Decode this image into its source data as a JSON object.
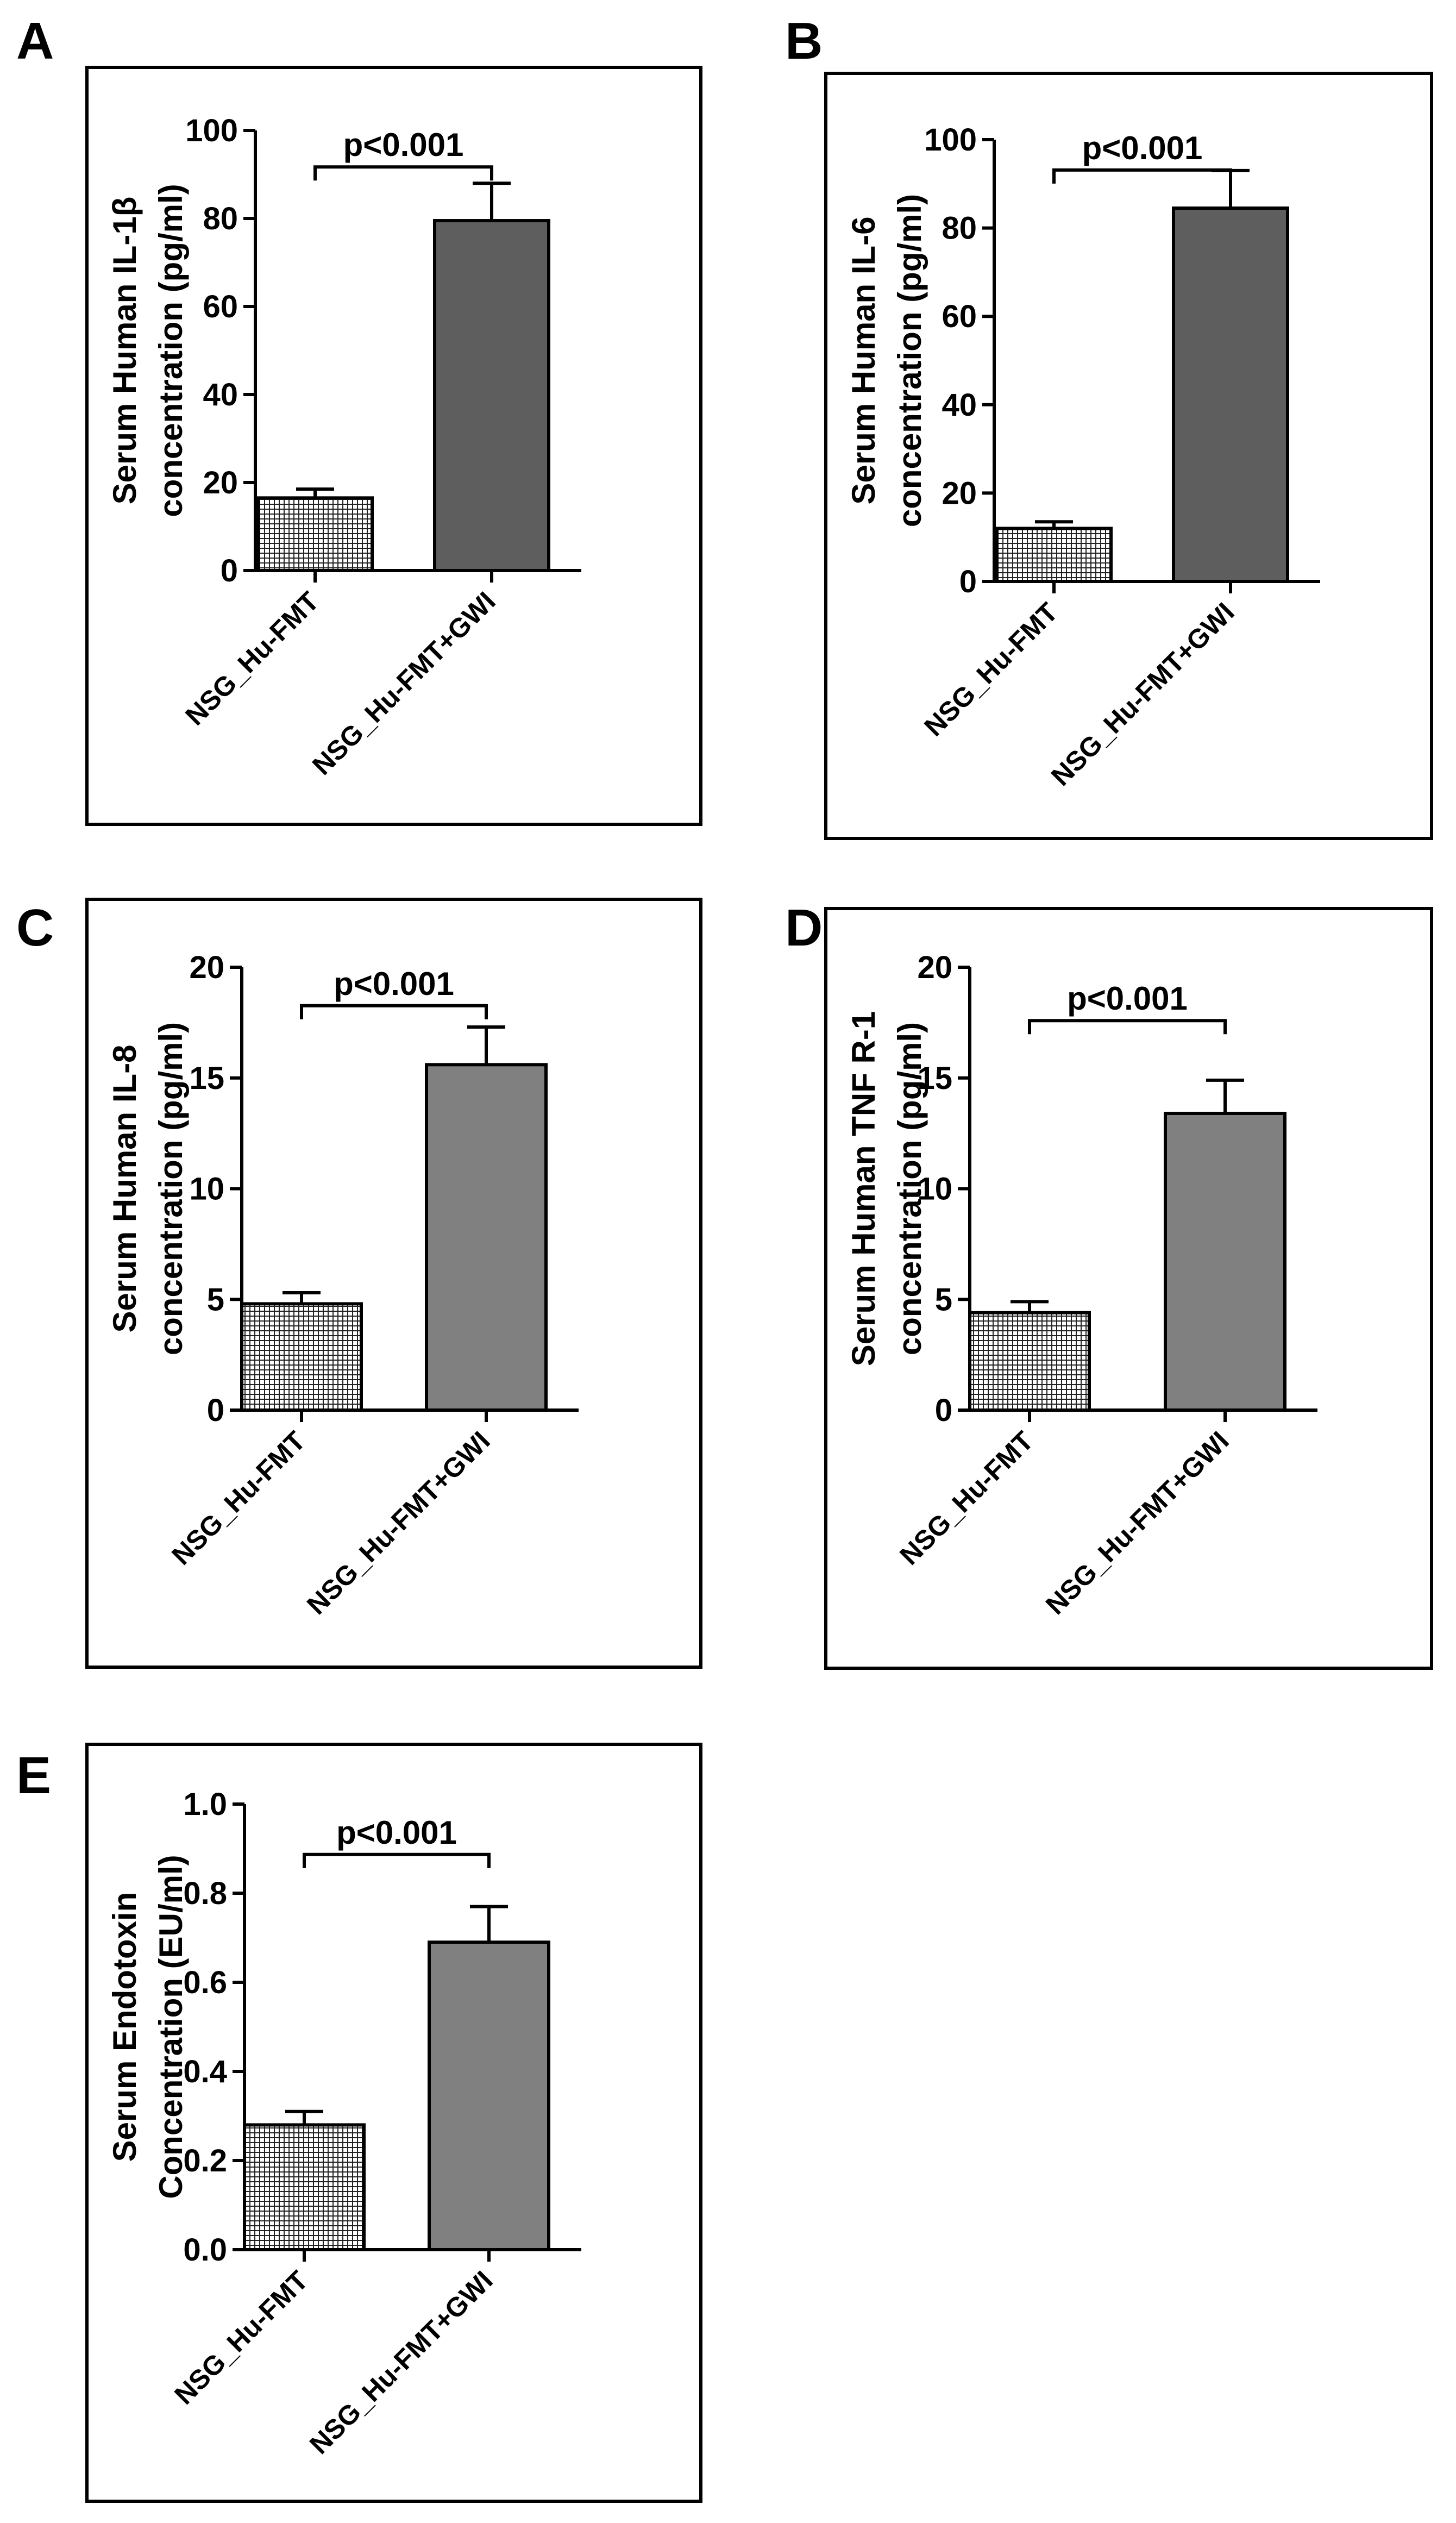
{
  "figure": {
    "panels": [
      {
        "letter": "A",
        "chart_data": {
          "type": "bar",
          "ylabel_line1": "Serum Human IL-1β",
          "ylabel_line2": "concentration (pg/ml)",
          "categories": [
            "NSG_Hu-FMT",
            "NSG_Hu-FMT+GWI"
          ],
          "values": [
            16.5,
            79.5
          ],
          "errors": [
            2,
            8.5
          ],
          "ylim": [
            0,
            100
          ],
          "yticks": [
            0,
            20,
            40,
            60,
            80,
            100
          ],
          "tick_labels": [
            "0",
            "20",
            "40",
            "60",
            "80",
            "100"
          ],
          "annotation": "p<0.001",
          "bar_fills": [
            "pattern",
            "#5e5e5e"
          ]
        }
      },
      {
        "letter": "B",
        "chart_data": {
          "type": "bar",
          "ylabel_line1": "Serum Human IL-6",
          "ylabel_line2": "concentration (pg/ml)",
          "categories": [
            "NSG_Hu-FMT",
            "NSG_Hu-FMT+GWI"
          ],
          "values": [
            12,
            84.5
          ],
          "errors": [
            1.5,
            8.5
          ],
          "ylim": [
            0,
            100
          ],
          "yticks": [
            0,
            20,
            40,
            60,
            80,
            100
          ],
          "tick_labels": [
            "0",
            "20",
            "40",
            "60",
            "80",
            "100"
          ],
          "annotation": "p<0.001",
          "bar_fills": [
            "pattern",
            "#5e5e5e"
          ]
        }
      },
      {
        "letter": "C",
        "chart_data": {
          "type": "bar",
          "ylabel_line1": "Serum Human IL-8",
          "ylabel_line2": "concentration (pg/ml)",
          "categories": [
            "NSG_Hu-FMT",
            "NSG_Hu-FMT+GWI"
          ],
          "values": [
            4.8,
            15.6
          ],
          "errors": [
            0.5,
            1.7
          ],
          "ylim": [
            0,
            20
          ],
          "yticks": [
            0,
            5,
            10,
            15,
            20
          ],
          "tick_labels": [
            "0",
            "5",
            "10",
            "15",
            "20"
          ],
          "annotation": "p<0.001",
          "bar_fills": [
            "pattern",
            "#808080"
          ]
        }
      },
      {
        "letter": "D",
        "chart_data": {
          "type": "bar",
          "ylabel_line1": "Serum Human TNF R-1",
          "ylabel_line2": "concentration (pg/ml)",
          "categories": [
            "NSG_Hu-FMT",
            "NSG_Hu-FMT+GWI"
          ],
          "values": [
            4.4,
            13.4
          ],
          "errors": [
            0.5,
            1.5
          ],
          "ylim": [
            0,
            20
          ],
          "yticks": [
            0,
            5,
            10,
            15,
            20
          ],
          "tick_labels": [
            "0",
            "5",
            "10",
            "15",
            "20"
          ],
          "annotation": "p<0.001",
          "bar_fills": [
            "pattern",
            "#808080"
          ]
        }
      },
      {
        "letter": "E",
        "chart_data": {
          "type": "bar",
          "ylabel_line1": "Serum Endotoxin",
          "ylabel_line2": "Concentration (EU/ml)",
          "categories": [
            "NSG_Hu-FMT",
            "NSG_Hu-FMT+GWI"
          ],
          "values": [
            0.28,
            0.69
          ],
          "errors": [
            0.03,
            0.08
          ],
          "ylim": [
            0,
            1.0
          ],
          "yticks": [
            0,
            0.2,
            0.4,
            0.6,
            0.8,
            1.0
          ],
          "tick_labels": [
            "0.0",
            "0.2",
            "0.4",
            "0.6",
            "0.8",
            "1.0"
          ],
          "annotation": "p<0.001",
          "bar_fills": [
            "pattern",
            "#808080"
          ]
        }
      }
    ]
  }
}
